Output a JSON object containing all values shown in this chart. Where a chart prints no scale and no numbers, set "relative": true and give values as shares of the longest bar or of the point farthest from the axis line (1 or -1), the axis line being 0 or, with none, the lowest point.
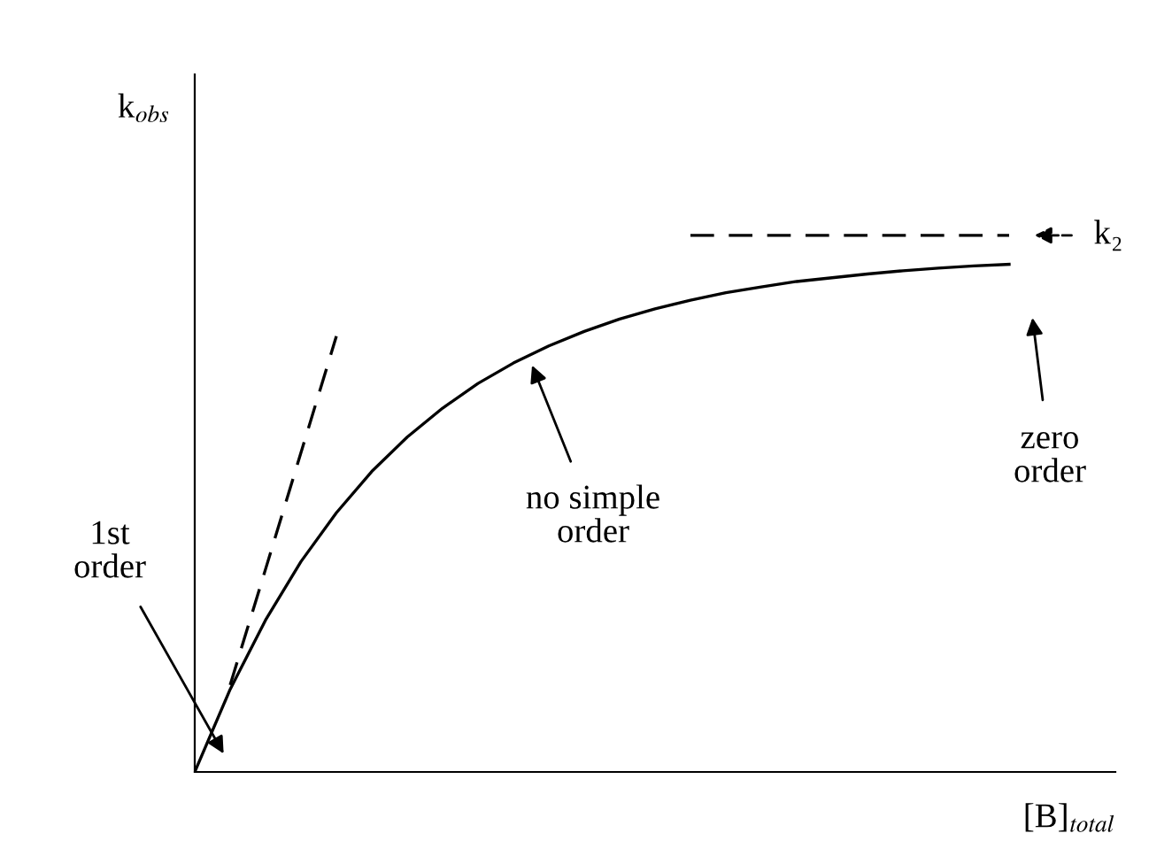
{
  "chart_data": {
    "type": "line",
    "relative": true,
    "xlabel": "[B]$_{total}$",
    "ylabel": "k$_{obs}$",
    "categories": [
      null,
      null,
      null,
      null,
      null,
      null,
      null,
      null,
      null,
      null,
      null,
      null,
      null,
      null,
      null,
      null,
      null,
      null,
      null,
      null,
      null,
      null,
      null,
      null,
      null,
      null,
      null
    ],
    "series": [
      {
        "color": "#000000",
        "line_style": "solid",
        "values": [
          0,
          0.154,
          0.283,
          0.392,
          0.483,
          0.56,
          0.624,
          0.678,
          0.724,
          0.762,
          0.794,
          0.821,
          0.844,
          0.863,
          0.879,
          0.893,
          0.904,
          0.914,
          0.921,
          0.928,
          0.934,
          0.939,
          0.943,
          0.946,
          null,
          null,
          null
        ]
      },
      {
        "color": "#000000",
        "line_style": "dashed",
        "values": [
          null,
          0.162,
          0.378,
          0.595,
          0.812,
          null,
          null,
          null,
          null,
          null,
          null,
          null,
          null,
          null,
          null,
          null,
          null,
          null,
          null,
          null,
          null,
          null,
          null,
          null,
          null,
          null,
          null
        ]
      },
      {
        "color": "#000000",
        "line_style": "dashed",
        "values": [
          null,
          null,
          null,
          null,
          null,
          null,
          null,
          null,
          null,
          null,
          null,
          null,
          null,
          null,
          1,
          1,
          1,
          1,
          1,
          1,
          1,
          1,
          1,
          1,
          null,
          null,
          null
        ]
      }
    ],
    "annotations": [
      "1st\norder",
      "no simple\norder",
      "zero\norder",
      "k₂"
    ],
    "legend": false,
    "marker": "none"
  }
}
